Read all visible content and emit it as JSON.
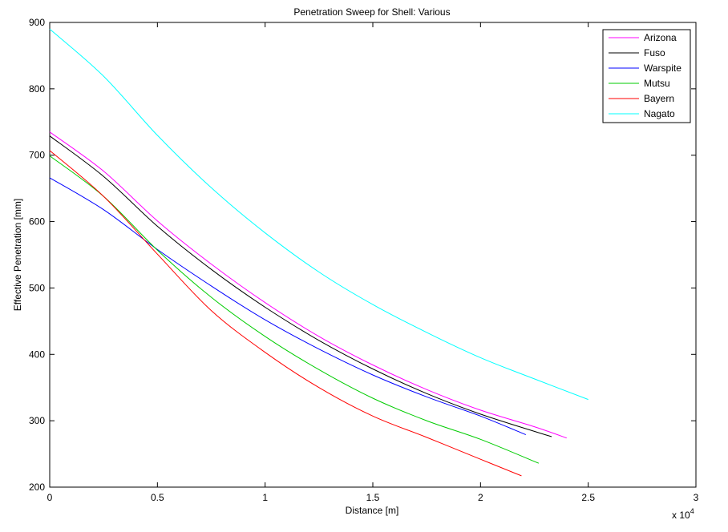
{
  "chart_data": {
    "type": "line",
    "title": "Penetration Sweep for Shell: Various",
    "xlabel": "Distance [m]",
    "ylabel": "Effective Penetration [mm]",
    "xlim": [
      0,
      30000
    ],
    "ylim": [
      200,
      900
    ],
    "x_ticks": [
      0,
      5000,
      10000,
      15000,
      20000,
      25000,
      30000
    ],
    "x_tick_labels": [
      "0",
      "0.5",
      "1",
      "1.5",
      "2",
      "2.5",
      "3"
    ],
    "x_multiplier": "x 10",
    "x_multiplier_exp": "4",
    "y_ticks": [
      200,
      300,
      400,
      500,
      600,
      700,
      800,
      900
    ],
    "y_tick_labels": [
      "200",
      "300",
      "400",
      "500",
      "600",
      "700",
      "800",
      "900"
    ],
    "grid": false,
    "legend_position": "top-right",
    "series": [
      {
        "name": "Arizona",
        "color": "#ff00ff",
        "points": [
          [
            0,
            735
          ],
          [
            2500,
            676
          ],
          [
            5000,
            601
          ],
          [
            7500,
            536
          ],
          [
            10000,
            478
          ],
          [
            12500,
            427
          ],
          [
            15000,
            384
          ],
          [
            17500,
            347
          ],
          [
            20000,
            316
          ],
          [
            22500,
            291
          ],
          [
            24000,
            274
          ]
        ]
      },
      {
        "name": "Fuso",
        "color": "#000000",
        "points": [
          [
            0,
            729
          ],
          [
            2500,
            668
          ],
          [
            5000,
            593
          ],
          [
            7500,
            528
          ],
          [
            10000,
            471
          ],
          [
            12500,
            421
          ],
          [
            15000,
            378
          ],
          [
            17500,
            341
          ],
          [
            20000,
            310
          ],
          [
            22500,
            284
          ],
          [
            23300,
            276
          ]
        ]
      },
      {
        "name": "Warspite",
        "color": "#0000ff",
        "points": [
          [
            0,
            666
          ],
          [
            2500,
            618
          ],
          [
            5000,
            558
          ],
          [
            7500,
            503
          ],
          [
            10000,
            452
          ],
          [
            12500,
            408
          ],
          [
            15000,
            369
          ],
          [
            17500,
            336
          ],
          [
            20000,
            307
          ],
          [
            22100,
            279
          ]
        ]
      },
      {
        "name": "Mutsu",
        "color": "#00cc00",
        "points": [
          [
            0,
            699
          ],
          [
            2500,
            638
          ],
          [
            5000,
            557
          ],
          [
            7500,
            486
          ],
          [
            10000,
            427
          ],
          [
            12500,
            377
          ],
          [
            15000,
            334
          ],
          [
            17500,
            300
          ],
          [
            20000,
            272
          ],
          [
            22700,
            236
          ]
        ]
      },
      {
        "name": "Bayern",
        "color": "#ff0000",
        "points": [
          [
            0,
            707
          ],
          [
            2500,
            638
          ],
          [
            5000,
            551
          ],
          [
            7500,
            466
          ],
          [
            10000,
            403
          ],
          [
            12500,
            350
          ],
          [
            15000,
            307
          ],
          [
            17500,
            275
          ],
          [
            20000,
            242
          ],
          [
            21900,
            217
          ]
        ]
      },
      {
        "name": "Nagato",
        "color": "#00ffff",
        "points": [
          [
            0,
            890
          ],
          [
            2500,
            819
          ],
          [
            5000,
            730
          ],
          [
            7500,
            651
          ],
          [
            10000,
            583
          ],
          [
            12500,
            524
          ],
          [
            15000,
            475
          ],
          [
            17500,
            433
          ],
          [
            20000,
            395
          ],
          [
            22500,
            363
          ],
          [
            25000,
            332
          ]
        ]
      }
    ]
  }
}
